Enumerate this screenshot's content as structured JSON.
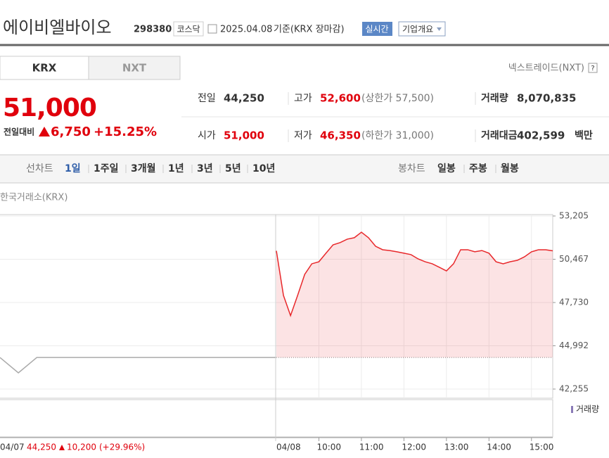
{
  "header": {
    "name": "에이비엘바이오",
    "code": "298380",
    "market": "코스닥",
    "date": "2025.04.08",
    "basis": "기준(KRX 장마감)",
    "realtime": "실시간",
    "company_info": "기업개요"
  },
  "tabs": [
    "KRX",
    "NXT"
  ],
  "nxt_link": "넥스트레이드(NXT)",
  "help": "?",
  "price": {
    "current": "51,000",
    "change_label": "전일대비",
    "change": "6,750",
    "change_rate": "+15.25%"
  },
  "stats": {
    "rows": [
      [
        {
          "label": "전일",
          "value": "44,250"
        },
        {
          "label": "고가",
          "value": "52,600",
          "note": "(상한가 57,500)"
        },
        {
          "label": "거래량",
          "value": "8,070,835"
        }
      ],
      [
        {
          "label": "시가",
          "value": "51,000"
        },
        {
          "label": "저가",
          "value": "46,350",
          "note": "(하한가 31,000)"
        },
        {
          "label": "거래대금",
          "value": "402,599",
          "unit": "백만"
        }
      ]
    ]
  },
  "periods": {
    "line_label": "선차트",
    "line": [
      "1일",
      "1주일",
      "3개월",
      "1년",
      "3년",
      "5년",
      "10년"
    ],
    "candle_label": "봉차트",
    "candle": [
      "일봉",
      "주봉",
      "월봉"
    ]
  },
  "chart_data": {
    "type": "line",
    "subtitle": "한국거래소(KRX)",
    "x": [
      "09:00",
      "09:10",
      "09:20",
      "09:30",
      "09:40",
      "09:50",
      "10:00",
      "10:10",
      "10:20",
      "10:30",
      "10:40",
      "10:50",
      "11:00",
      "11:10",
      "11:20",
      "11:30",
      "11:40",
      "11:50",
      "12:00",
      "12:10",
      "12:20",
      "12:30",
      "12:40",
      "12:50",
      "13:00",
      "13:10",
      "13:20",
      "13:30",
      "13:40",
      "13:50",
      "14:00",
      "14:10",
      "14:20",
      "14:30",
      "14:40",
      "14:50",
      "15:00",
      "15:10",
      "15:20",
      "15:30"
    ],
    "series": [
      {
        "color": "#e8282b",
        "values": [
          51000,
          48180,
          46900,
          48180,
          49510,
          50180,
          50310,
          50850,
          51380,
          51520,
          51740,
          51830,
          52180,
          51830,
          51290,
          51070,
          51020,
          50940,
          50850,
          50760,
          50490,
          50310,
          50180,
          49960,
          49730,
          50180,
          51070,
          51070,
          50940,
          51020,
          50850,
          50310,
          50180,
          50310,
          50400,
          50620,
          50940,
          51070,
          51070,
          51000
        ]
      }
    ],
    "prev_day": {
      "date": "04/07",
      "color": "#aaaaaa",
      "values": [
        44250,
        43280,
        44250,
        44250,
        44250,
        44250,
        44250,
        44250,
        44250,
        44250,
        44250,
        44250,
        44250,
        44250,
        44250,
        44250
      ],
      "close": "44,250",
      "change": "10,200",
      "change_rate": "(+29.96%)"
    },
    "prev_close": 44250,
    "date": "04/08",
    "ylim": [
      42255,
      53205
    ],
    "yticks": [
      {
        "value": 53205,
        "label": "53,205"
      },
      {
        "value": 50467,
        "label": "50,467"
      },
      {
        "value": 47730,
        "label": "47,730"
      },
      {
        "value": 44992,
        "label": "44,992"
      },
      {
        "value": 42255,
        "label": "42,255"
      }
    ],
    "xticks": [
      "10:00",
      "11:00",
      "12:00",
      "13:00",
      "14:00",
      "15:00"
    ],
    "grid": true,
    "volume_label": "거래량"
  }
}
